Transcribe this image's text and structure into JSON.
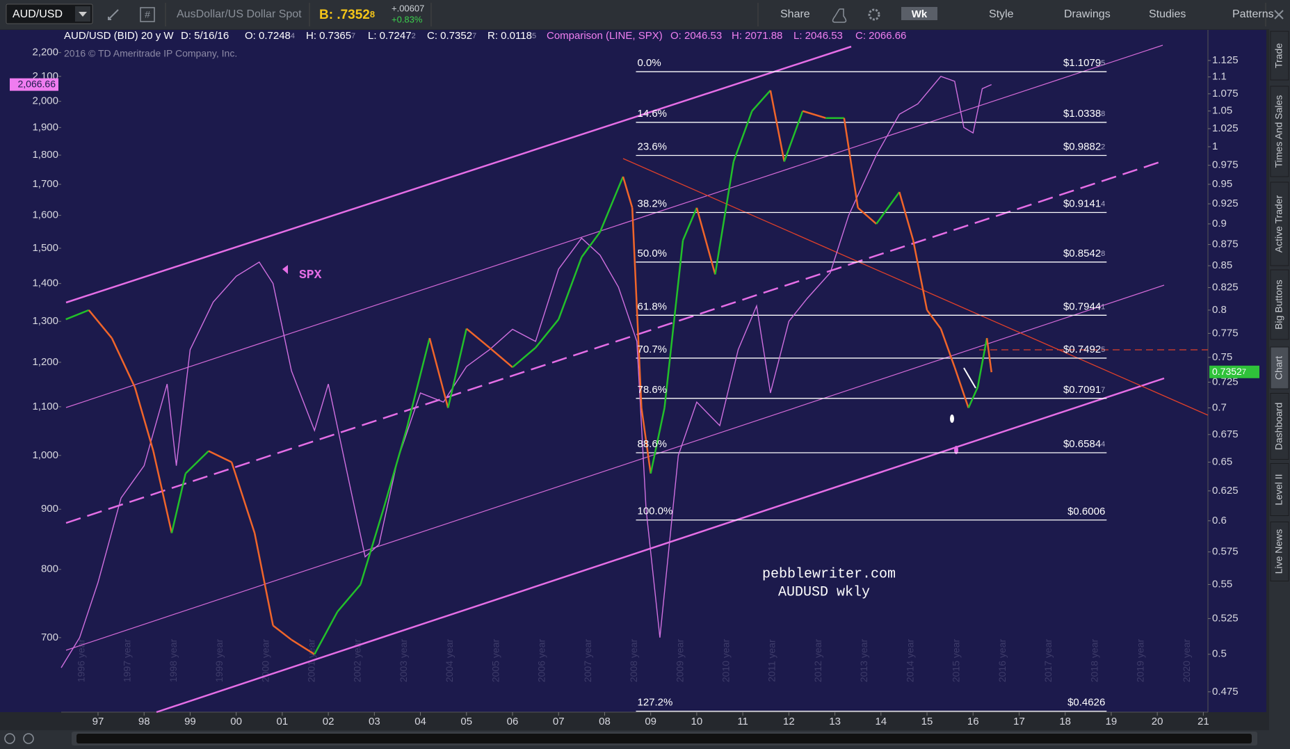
{
  "toolbar": {
    "description": "AusDollar/US Dollar Spot",
    "bid": {
      "text": "B: .7352",
      "sub": "8"
    },
    "change": "+.00607",
    "change_pct": "+0.83%",
    "buttons": [
      "Share",
      "Wk",
      "Style",
      "Drawings",
      "Studies",
      "Patterns"
    ]
  },
  "header": {
    "instrument": [
      {
        "text": "AUD/USD (BID) 20 y W"
      },
      {
        "text": "D: 5/16/16"
      },
      {
        "text": "O: 0.7248",
        "sub": "4"
      },
      {
        "text": "H: 0.7365",
        "sub": "7"
      },
      {
        "text": "L: 0.7247",
        "sub": "2"
      },
      {
        "text": "C: 0.7352",
        "sub": "7"
      },
      {
        "text": "R: 0.0118",
        "sub": "5"
      }
    ],
    "comparison": [
      {
        "text": "Comparison (LINE, SPX)"
      },
      {
        "text": "O: 2046.53"
      },
      {
        "text": "H: 2071.88"
      },
      {
        "text": "L: 2046.53"
      },
      {
        "text": "C: 2066.66"
      }
    ]
  },
  "side_tabs": [
    "Trade",
    "Times And Sales",
    "Active Trader",
    "Big Buttons",
    "Chart",
    "Dashboard",
    "Level II",
    "Live News"
  ],
  "chart_data": {
    "type": "line",
    "copyright": "2016 © TD Ameritrade IP Company, Inc.",
    "annotations": [
      "pebblewriter.com",
      "AUDUSD wkly"
    ],
    "log_scale": true,
    "xlim": [
      1996.2,
      2021.1
    ],
    "xticks": [
      {
        "value": 1997,
        "label": "97"
      },
      {
        "value": 1998,
        "label": "98"
      },
      {
        "value": 1999,
        "label": "99"
      },
      {
        "value": 2000,
        "label": "00"
      },
      {
        "value": 2001,
        "label": "01"
      },
      {
        "value": 2002,
        "label": "02"
      },
      {
        "value": 2003,
        "label": "03"
      },
      {
        "value": 2004,
        "label": "04"
      },
      {
        "value": 2005,
        "label": "05"
      },
      {
        "value": 2006,
        "label": "06"
      },
      {
        "value": 2007,
        "label": "07"
      },
      {
        "value": 2008,
        "label": "08"
      },
      {
        "value": 2009,
        "label": "09"
      },
      {
        "value": 2010,
        "label": "10"
      },
      {
        "value": 2011,
        "label": "11"
      },
      {
        "value": 2012,
        "label": "12"
      },
      {
        "value": 2013,
        "label": "13"
      },
      {
        "value": 2014,
        "label": "14"
      },
      {
        "value": 2015,
        "label": "15"
      },
      {
        "value": 2016,
        "label": "16"
      },
      {
        "value": 2017,
        "label": "17"
      },
      {
        "value": 2018,
        "label": "18"
      },
      {
        "value": 2019,
        "label": "19"
      },
      {
        "value": 2020,
        "label": "20"
      },
      {
        "value": 2021,
        "label": "21"
      }
    ],
    "year_watermarks": [
      "1996 year",
      "1997 year",
      "1998 year",
      "1999 year",
      "2000 year",
      "2001 year",
      "2002 year",
      "2003 year",
      "2004 year",
      "2005 year",
      "2006 year",
      "2007 year",
      "2008 year",
      "2009 year",
      "2010 year",
      "2011 year",
      "2012 year",
      "2013 year",
      "2014 year",
      "2015 year",
      "2016 year",
      "2017 year",
      "2018 year",
      "2019 year",
      "2020 year"
    ],
    "ylim": [
      605,
      2300
    ],
    "yticks": [
      {
        "value": 2200,
        "label": "2,200"
      },
      {
        "value": 2100,
        "label": "2,100"
      },
      {
        "value": 2000,
        "label": "2,000"
      },
      {
        "value": 1900,
        "label": "1,900"
      },
      {
        "value": 1800,
        "label": "1,800"
      },
      {
        "value": 1700,
        "label": "1,700"
      },
      {
        "value": 1600,
        "label": "1,600"
      },
      {
        "value": 1500,
        "label": "1,500"
      },
      {
        "value": 1400,
        "label": "1,400"
      },
      {
        "value": 1300,
        "label": "1,300"
      },
      {
        "value": 1200,
        "label": "1,200"
      },
      {
        "value": 1100,
        "label": "1,100"
      },
      {
        "value": 1000,
        "label": "1,000"
      },
      900,
      800,
      700
    ],
    "y2lim": [
      0.462,
      1.173
    ],
    "y2ticks": [
      1.125,
      1.1,
      1.075,
      1.05,
      1.025,
      1,
      0.975,
      0.95,
      0.925,
      0.9,
      0.875,
      0.85,
      0.825,
      0.8,
      0.775,
      0.75,
      0.725,
      0.7,
      0.675,
      0.65,
      0.625,
      0.6,
      0.575,
      0.55,
      0.525,
      0.5,
      0.475
    ],
    "last_price_left": {
      "value": 2066.66,
      "label": "2,066.66"
    },
    "last_price_right": {
      "value": 0.73527,
      "label": "0.7352",
      "sub": "7"
    },
    "fib_xrange": [
      2008.68,
      2018.9
    ],
    "fib_levels": [
      {
        "pct": "0.0%",
        "value": 1.10795,
        "label": "$1.1079",
        "sub": "5"
      },
      {
        "pct": "14.6%",
        "value": 1.03388,
        "label": "$1.0338",
        "sub": "8"
      },
      {
        "pct": "23.6%",
        "value": 0.98822,
        "label": "$0.9882",
        "sub": "2"
      },
      {
        "pct": "38.2%",
        "value": 0.91414,
        "label": "$0.9141",
        "sub": "4"
      },
      {
        "pct": "50.0%",
        "value": 0.85428,
        "label": "$0.8542",
        "sub": "8"
      },
      {
        "pct": "61.8%",
        "value": 0.79441,
        "label": "$0.7944",
        "sub": "1"
      },
      {
        "pct": "70.7%",
        "value": 0.74925,
        "label": "$0.7492",
        "sub": "5"
      },
      {
        "pct": "78.6%",
        "value": 0.70917,
        "label": "$0.7091",
        "sub": "7"
      },
      {
        "pct": "88.6%",
        "value": 0.65844,
        "label": "$0.6584",
        "sub": "4"
      },
      {
        "pct": "100.0%",
        "value": 0.6006,
        "label": "$0.6006"
      },
      {
        "pct": "127.2%",
        "value": 0.4626,
        "label": "$0.4626"
      }
    ],
    "series": [
      {
        "name": "AUD/USD",
        "axis": "y2",
        "up_color": "#22c02a",
        "down_color": "#f0652a",
        "x": [
          1996.3,
          1996.8,
          1997.3,
          1997.8,
          1998.2,
          1998.6,
          1998.9,
          1999.4,
          1999.9,
          2000.4,
          2000.8,
          2001.2,
          2001.7,
          2002.2,
          2002.7,
          2003.2,
          2003.7,
          2004.2,
          2004.6,
          2005.0,
          2005.5,
          2006.0,
          2006.5,
          2007.0,
          2007.5,
          2007.9,
          2008.4,
          2008.6,
          2008.8,
          2009.0,
          2009.3,
          2009.7,
          2010.0,
          2010.4,
          2010.8,
          2011.2,
          2011.6,
          2011.9,
          2012.3,
          2012.8,
          2013.2,
          2013.5,
          2013.9,
          2014.4,
          2014.7,
          2015.0,
          2015.3,
          2015.6,
          2015.9,
          2016.1,
          2016.3,
          2016.4
        ],
        "values": [
          0.79,
          0.8,
          0.77,
          0.72,
          0.66,
          0.59,
          0.64,
          0.66,
          0.65,
          0.59,
          0.52,
          0.51,
          0.5,
          0.53,
          0.55,
          0.61,
          0.68,
          0.77,
          0.7,
          0.78,
          0.76,
          0.74,
          0.76,
          0.79,
          0.86,
          0.89,
          0.96,
          0.92,
          0.7,
          0.64,
          0.7,
          0.88,
          0.92,
          0.84,
          0.98,
          1.05,
          1.08,
          0.98,
          1.05,
          1.04,
          1.04,
          0.92,
          0.9,
          0.94,
          0.88,
          0.8,
          0.78,
          0.74,
          0.7,
          0.72,
          0.77,
          0.735
        ]
      },
      {
        "name": "SPX",
        "axis": "y",
        "color": "#d070e0",
        "x": [
          1996.2,
          1996.6,
          1997.0,
          1997.5,
          1998.0,
          1998.5,
          1998.7,
          1999.0,
          1999.5,
          2000.0,
          2000.5,
          2000.8,
          2001.2,
          2001.7,
          2002.0,
          2002.5,
          2002.8,
          2003.1,
          2003.5,
          2004.0,
          2004.5,
          2005.0,
          2005.5,
          2006.0,
          2006.5,
          2007.0,
          2007.5,
          2007.9,
          2008.3,
          2008.7,
          2008.9,
          2009.2,
          2009.6,
          2010.0,
          2010.5,
          2010.9,
          2011.3,
          2011.6,
          2012.0,
          2012.4,
          2012.9,
          2013.3,
          2013.9,
          2014.4,
          2014.8,
          2015.3,
          2015.6,
          2015.8,
          2016.0,
          2016.2,
          2016.4
        ],
        "values": [
          660,
          700,
          780,
          920,
          980,
          1150,
          980,
          1230,
          1350,
          1420,
          1460,
          1400,
          1180,
          1050,
          1150,
          930,
          820,
          840,
          990,
          1130,
          1110,
          1190,
          1230,
          1280,
          1250,
          1440,
          1530,
          1480,
          1390,
          1250,
          900,
          700,
          1000,
          1110,
          1060,
          1230,
          1340,
          1130,
          1300,
          1360,
          1430,
          1600,
          1800,
          1950,
          1990,
          2100,
          2080,
          1900,
          1880,
          2050,
          2066.66
        ]
      }
    ]
  }
}
